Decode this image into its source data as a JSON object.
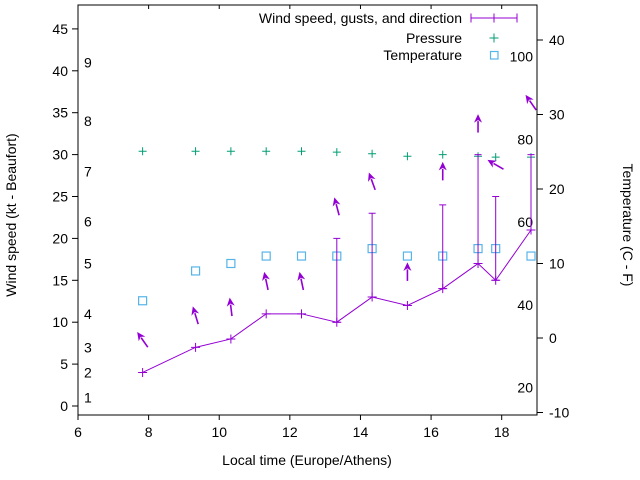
{
  "figure": {
    "xlabel": "Local time (Europe/Athens)",
    "ylabel_left": "Wind speed (kt - Beaufort)",
    "ylabel_right": "Temperature (C - F)"
  },
  "legend": {
    "wind_label": "Wind speed, gusts, and direction",
    "pressure_label": "Pressure",
    "temperature_label": "Temperature"
  },
  "colors": {
    "wind": "#9400d3",
    "pressure": "#009e73",
    "temperature": "#56b4e9",
    "frame": "#000000",
    "background": "#ffffff"
  },
  "chart_data": {
    "type": "line",
    "title": "",
    "x_axis": {
      "label": "Local time (Europe/Athens)",
      "ticks": [
        6,
        8,
        10,
        12,
        14,
        16,
        18
      ],
      "range": [
        6,
        19
      ]
    },
    "y_axis_left": {
      "label": "Wind speed (kt - Beaufort)",
      "ticks_kt": [
        0,
        5,
        10,
        15,
        20,
        25,
        30,
        35,
        40,
        45
      ],
      "range_kt": [
        -1,
        48
      ],
      "beaufort_labels": [
        {
          "label": "1",
          "kt": 1
        },
        {
          "label": "2",
          "kt": 4
        },
        {
          "label": "3",
          "kt": 7
        },
        {
          "label": "4",
          "kt": 11
        },
        {
          "label": "5",
          "kt": 17
        },
        {
          "label": "6",
          "kt": 22
        },
        {
          "label": "7",
          "kt": 28
        },
        {
          "label": "8",
          "kt": 34
        },
        {
          "label": "9",
          "kt": 41
        }
      ]
    },
    "y_axis_right": {
      "label": "Temperature (C - F)",
      "ticks_c": [
        -10,
        0,
        10,
        20,
        30,
        40
      ],
      "range_c": [
        -10.3,
        44.8
      ],
      "fahrenheit_labels": [
        20,
        40,
        60,
        80,
        100
      ]
    },
    "times": [
      7.83,
      9.33,
      10.33,
      11.33,
      12.33,
      13.33,
      14.33,
      15.33,
      16.33,
      17.33,
      17.83,
      18.83
    ],
    "series": [
      {
        "name": "Wind speed, gusts, and direction",
        "type": "errorbar-line",
        "color": "#9400d3",
        "wind_kt": [
          4,
          7,
          8,
          11,
          11,
          10,
          13,
          12,
          14,
          17,
          15,
          21
        ],
        "gust_kt": [
          null,
          null,
          null,
          null,
          null,
          20,
          23,
          null,
          24,
          30,
          25,
          30
        ],
        "direction_arrows": [
          {
            "angle_deg": -35,
            "y_kt": 7.9
          },
          {
            "angle_deg": -17,
            "y_kt": 10.8
          },
          {
            "angle_deg": -7,
            "y_kt": 11.8
          },
          {
            "angle_deg": -12,
            "y_kt": 14.9
          },
          {
            "angle_deg": -12,
            "y_kt": 14.9
          },
          {
            "angle_deg": -15,
            "y_kt": 23.8
          },
          {
            "angle_deg": -20,
            "y_kt": 26.8
          },
          {
            "angle_deg": 0,
            "y_kt": 16.0
          },
          {
            "angle_deg": 0,
            "y_kt": 28.0
          },
          {
            "angle_deg": 0,
            "y_kt": 33.7
          },
          {
            "angle_deg": -60,
            "y_kt": 28.8
          },
          {
            "angle_deg": -35,
            "y_kt": 36.2
          }
        ]
      },
      {
        "name": "Pressure",
        "type": "points",
        "marker": "plus",
        "color": "#009e73",
        "values_inHg_left_scale": [
          30.4,
          30.4,
          30.4,
          30.4,
          30.4,
          30.3,
          30.1,
          29.8,
          30.0,
          29.8,
          29.7,
          29.7
        ]
      },
      {
        "name": "Temperature",
        "type": "points",
        "marker": "open-square",
        "color": "#56b4e9",
        "values_c": [
          5,
          9,
          10,
          11,
          11,
          11,
          12,
          11,
          11,
          12,
          12,
          11
        ]
      }
    ]
  }
}
